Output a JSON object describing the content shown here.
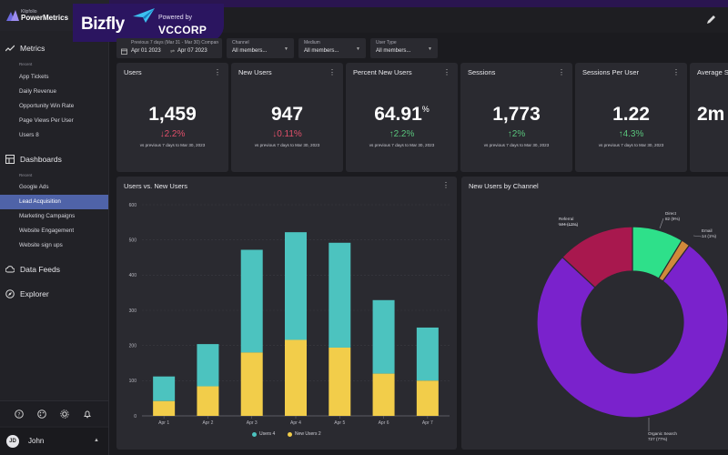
{
  "brand": {
    "small": "Klipfolio",
    "name": "PowerMetrics"
  },
  "overlay": {
    "name": "Bizfly",
    "powered": "Powered by",
    "corp": "VCCORP"
  },
  "sidebar": {
    "metrics": {
      "label": "Metrics",
      "recent_label": "Recent",
      "items": [
        "App Tickets",
        "Daily Revenue",
        "Opportunity Win Rate",
        "Page Views Per User",
        "Users 8"
      ]
    },
    "dashboards": {
      "label": "Dashboards",
      "recent_label": "Recent",
      "items": [
        "Google Ads",
        "Lead Acquisition",
        "Marketing Campaigns",
        "Website Engagement",
        "Website sign ups"
      ],
      "active_index": 1
    },
    "data_feeds": "Data Feeds",
    "explorer": "Explorer",
    "user": {
      "initials": "JD",
      "name": "John"
    }
  },
  "filters": {
    "date": {
      "label": "Previous 7 days (Mar 31 - Mar 30) Compare to...",
      "start": "Apr 01 2023",
      "end": "Apr 07 2023"
    },
    "channel": {
      "label": "Channel",
      "value": "All members..."
    },
    "medium": {
      "label": "Medium",
      "value": "All members..."
    },
    "user_type": {
      "label": "User Type",
      "value": "All members..."
    }
  },
  "kpis": [
    {
      "title": "Users",
      "value": "1,459",
      "suffix": "",
      "delta": "↓2.2%",
      "dir": "down",
      "compare": "vs previous 7 days to Mar 30, 2023"
    },
    {
      "title": "New Users",
      "value": "947",
      "suffix": "",
      "delta": "↓0.11%",
      "dir": "down",
      "compare": "vs previous 7 days to Mar 30, 2023"
    },
    {
      "title": "Percent New Users",
      "value": "64.91",
      "suffix": "%",
      "delta": "↑2.2%",
      "dir": "up",
      "compare": "vs previous 7 days to Mar 30, 2023"
    },
    {
      "title": "Sessions",
      "value": "1,773",
      "suffix": "",
      "delta": "↑2%",
      "dir": "up",
      "compare": "vs previous 7 days to Mar 30, 2023"
    },
    {
      "title": "Sessions Per User",
      "value": "1.22",
      "suffix": "",
      "delta": "↑4.3%",
      "dir": "up",
      "compare": "vs previous 7 days to Mar 30, 2023"
    },
    {
      "title": "Average S",
      "value": "2m",
      "suffix": "",
      "delta": "",
      "dir": "up",
      "compare": ""
    }
  ],
  "panels": {
    "bar_title": "Users vs. New Users",
    "pie_title": "New Users by Channel"
  },
  "chart_data": [
    {
      "type": "bar",
      "title": "Users vs. New Users",
      "categories": [
        "Apr 1",
        "Apr 2",
        "Apr 3",
        "Apr 4",
        "Apr 5",
        "Apr 6",
        "Apr 7"
      ],
      "series": [
        {
          "name": "Users 4",
          "values": [
            112,
            204,
            472,
            522,
            492,
            329,
            251
          ],
          "color": "#4cc3bf"
        },
        {
          "name": "New Users 2",
          "values": [
            42,
            84,
            180,
            216,
            194,
            120,
            100
          ],
          "color": "#f2cd4a"
        }
      ],
      "ylim": [
        0,
        600
      ],
      "yticks": [
        0,
        100,
        200,
        300,
        400,
        500,
        600
      ],
      "grid": true,
      "legend": "bottom"
    },
    {
      "type": "pie",
      "title": "New Users by Channel",
      "slices": [
        {
          "label": "Direct",
          "detail": "82 (9%)",
          "value": 82,
          "color": "#2ee08a"
        },
        {
          "label": "Email",
          "detail": "14 (1%)",
          "value": 14,
          "color": "#d08a3a"
        },
        {
          "label": "Organic Search",
          "detail": "727 (77%)",
          "value": 727,
          "color": "#7a22cc"
        },
        {
          "label": "Referral",
          "detail": "124 (13%)",
          "value": 124,
          "color": "#a8184e"
        }
      ]
    }
  ]
}
